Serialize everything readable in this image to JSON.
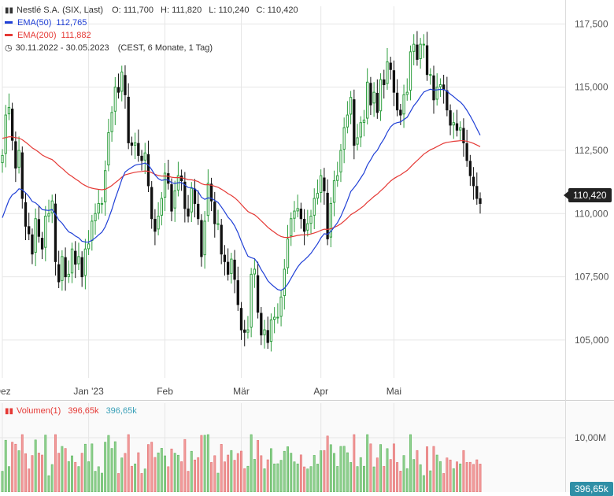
{
  "header": {
    "title": "Nestlé S.A. (SIX, Last)",
    "open_label": "O:",
    "open": "111,700",
    "high_label": "H:",
    "high": "111,820",
    "low_label": "L:",
    "low": "110,240",
    "close_label": "C:",
    "close": "110,420",
    "ema50_label": "EMA(50)",
    "ema50_value": "112,765",
    "ema200_label": "EMA(200)",
    "ema200_value": "111,882",
    "range": "30.11.2022 - 30.05.2023",
    "range_note": "(CEST, 6 Monate, 1 Tag)",
    "volume_label": "Volumen(1)",
    "volume_value_red": "396,65k",
    "volume_value_teal": "396,65k"
  },
  "colors": {
    "up": "#2e9e3e",
    "down": "#111111",
    "ema50": "#1f3fd6",
    "ema200": "#e53935",
    "vol_up": "#8fd08f",
    "vol_down": "#f19a9a",
    "grid": "#e6e6e6"
  },
  "chart_data": {
    "type": "candlestick",
    "price_axis": {
      "min": 103.5,
      "max": 118.2,
      "ticks": [
        105.0,
        107.5,
        110.0,
        112.5,
        115.0,
        117.5
      ],
      "tick_labels": [
        "105,000",
        "107,500",
        "110,000",
        "112,500",
        "115,000",
        "117,500"
      ]
    },
    "time_axis": {
      "labels": [
        "Dez",
        "Jan '23",
        "Feb",
        "Mär",
        "Apr",
        "Mai"
      ],
      "label_index": [
        0,
        26,
        49,
        72,
        96,
        118
      ]
    },
    "last_price": 110.42,
    "last_price_label": "110,420",
    "closes": [
      112.3,
      113.9,
      114.2,
      112.9,
      111.8,
      112.5,
      110.6,
      109.5,
      109.2,
      108.4,
      109.8,
      109.1,
      108.6,
      109.9,
      110.0,
      110.5,
      108.1,
      107.3,
      108.3,
      107.5,
      107.6,
      108.6,
      108.0,
      108.3,
      107.5,
      108.6,
      108.8,
      109.7,
      110.0,
      110.4,
      110.4,
      111.7,
      113.2,
      114.0,
      115.0,
      114.8,
      115.6,
      114.7,
      112.8,
      112.7,
      112.8,
      112.3,
      112.1,
      112.4,
      111.1,
      109.8,
      109.3,
      109.9,
      110.6,
      111.6,
      111.2,
      110.1,
      110.9,
      111.5,
      111.3,
      110.2,
      109.9,
      111.0,
      110.4,
      109.8,
      108.3,
      109.7,
      111.2,
      110.5,
      109.6,
      109.6,
      108.4,
      108.1,
      107.6,
      108.2,
      107.4,
      106.4,
      105.4,
      105.3,
      105.4,
      107.6,
      107.8,
      106.1,
      105.2,
      105.4,
      104.9,
      105.8,
      105.9,
      105.9,
      106.7,
      107.8,
      109.0,
      109.8,
      110.1,
      110.2,
      109.8,
      109.3,
      109.6,
      109.9,
      110.6,
      110.8,
      111.5,
      110.9,
      109.0,
      110.4,
      111.3,
      111.5,
      112.5,
      113.4,
      113.9,
      114.6,
      112.7,
      113.0,
      113.6,
      113.7,
      115.2,
      114.3,
      114.8,
      114.0,
      115.3,
      115.1,
      116.0,
      115.7,
      114.8,
      114.1,
      113.9,
      114.7,
      114.8,
      116.4,
      116.7,
      116.1,
      116.7,
      116.7,
      115.5,
      115.5,
      114.5,
      115.0,
      115.1,
      114.9,
      114.1,
      113.5,
      113.6,
      113.3,
      113.4,
      112.8,
      112.1,
      111.5,
      111.1,
      110.6,
      110.4
    ]
  },
  "volume": {
    "axis_label": "10,00M",
    "last_label": "396,65k"
  }
}
